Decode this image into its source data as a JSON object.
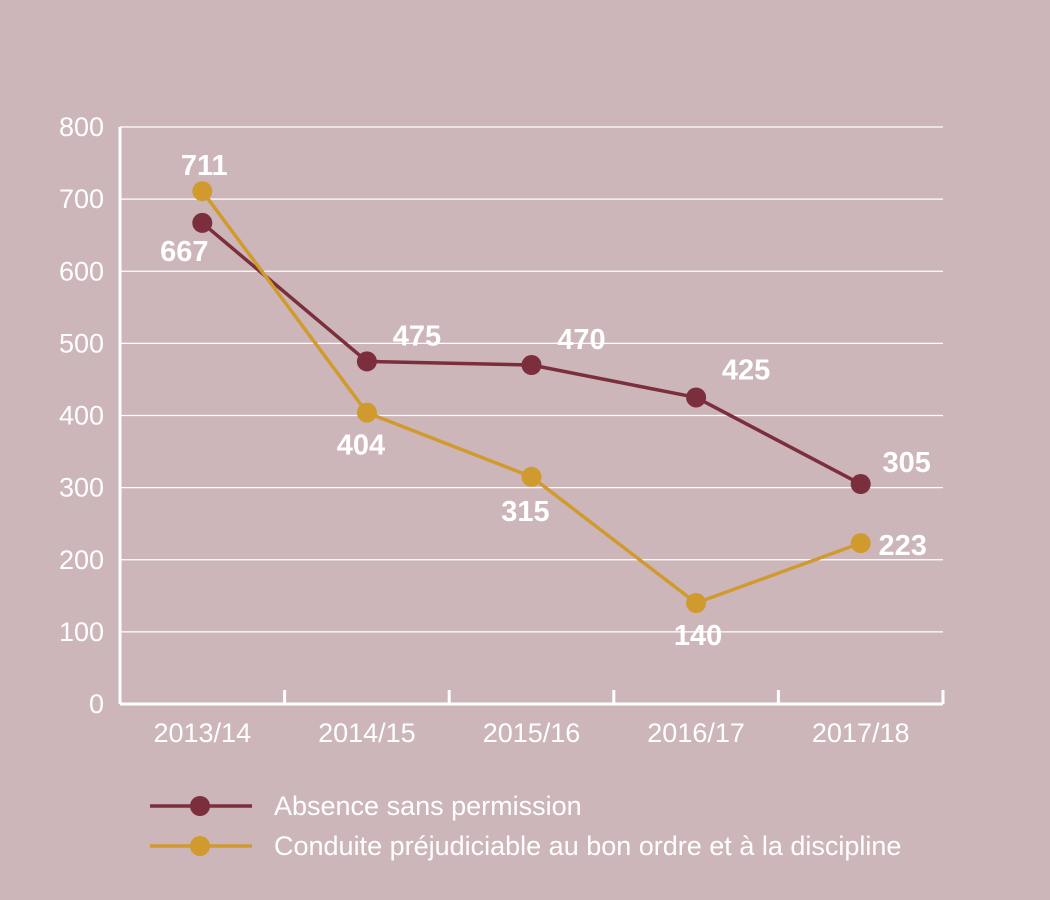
{
  "chart_data": {
    "type": "line",
    "categories": [
      "2013/14",
      "2014/15",
      "2015/16",
      "2016/17",
      "2017/18"
    ],
    "series": [
      {
        "name": "Absence sans permission",
        "values": [
          667,
          475,
          470,
          425,
          305
        ],
        "color": "#7b2e3b"
      },
      {
        "name": "Conduite préjudiciable au bon ordre et à la discipline",
        "values": [
          711,
          404,
          315,
          140,
          223
        ],
        "color": "#d09a2e"
      }
    ],
    "ylim": [
      0,
      800
    ],
    "yticks": [
      "0",
      "100",
      "200",
      "300",
      "400",
      "500",
      "600",
      "700",
      "800"
    ],
    "grid": true,
    "legend_position": "bottom-left",
    "title": "",
    "xlabel": "",
    "ylabel": ""
  }
}
